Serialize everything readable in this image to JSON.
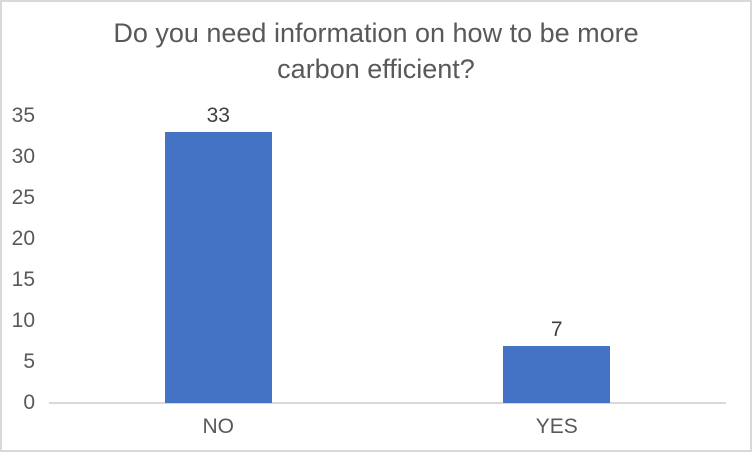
{
  "chart_data": {
    "type": "bar",
    "title": "Do you need information on how to be more carbon efficient?",
    "categories": [
      "NO",
      "YES"
    ],
    "values": [
      33,
      7
    ],
    "data_labels": [
      "33",
      "7"
    ],
    "yticks": [
      0,
      5,
      10,
      15,
      20,
      25,
      30,
      35
    ],
    "ylim": [
      0,
      35
    ],
    "xlabel": "",
    "ylabel": "",
    "grid": false,
    "legend": false,
    "bar_color": "#4472C4",
    "axis_line_color": "#D9D9D9",
    "title_color": "#595959",
    "tick_label_color": "#595959",
    "category_label_color": "#595959",
    "data_label_color": "#404040",
    "background_color": "#FFFFFF",
    "border_color": "#D9D9D9"
  }
}
